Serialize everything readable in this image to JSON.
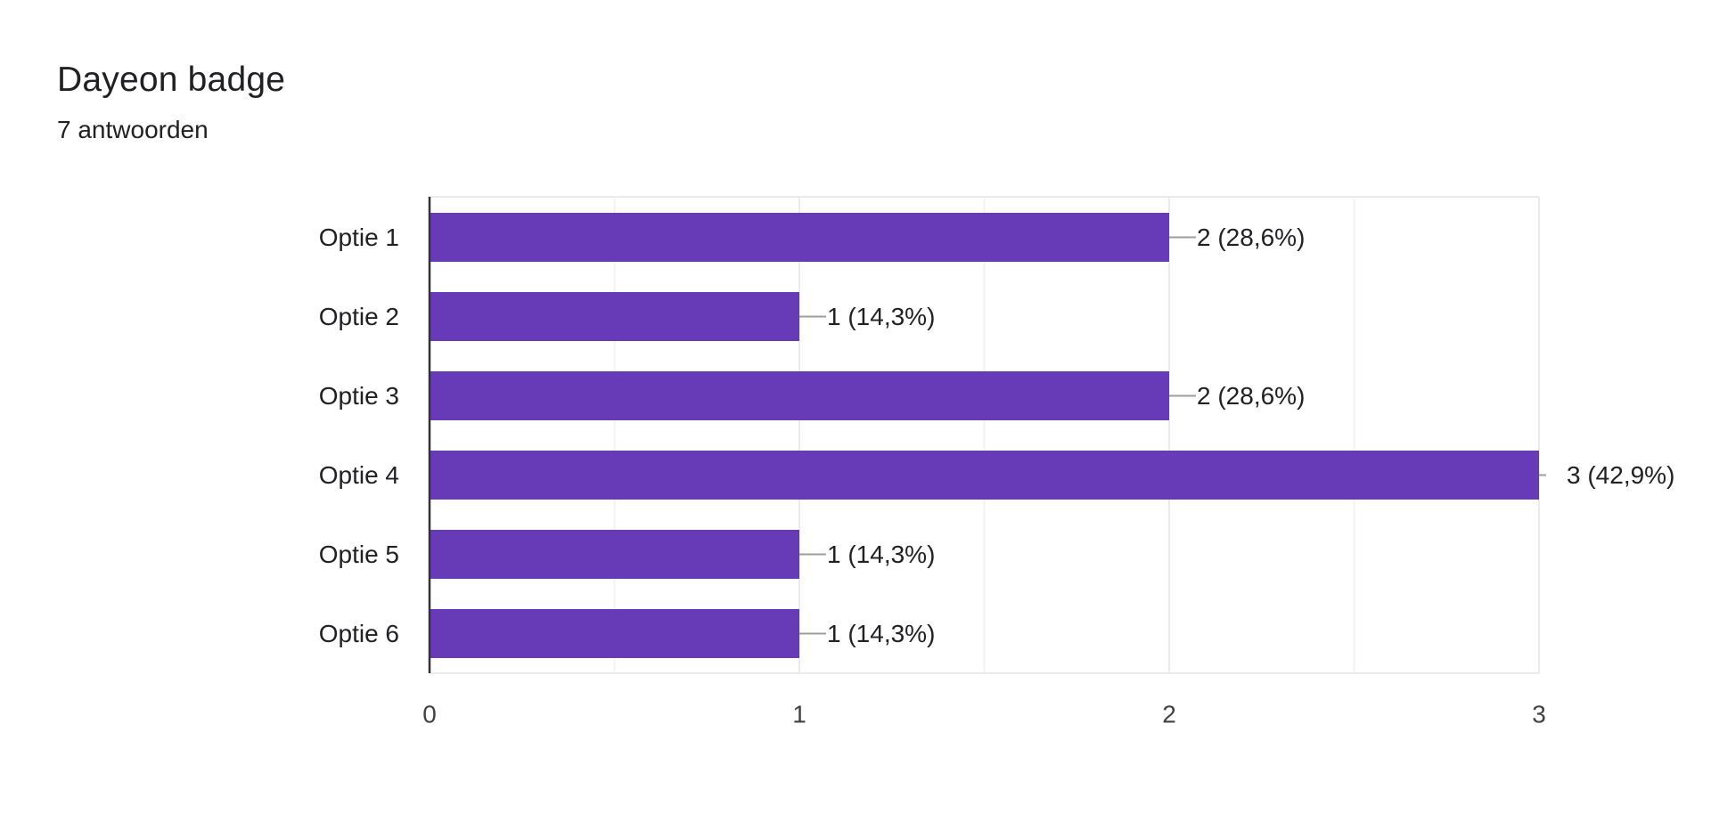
{
  "header": {
    "title": "Dayeon badge",
    "response_count": "7 antwoorden"
  },
  "colors": {
    "bar": "#673ab7",
    "grid": "#ebebeb",
    "axis": "#333333",
    "leader": "#9e9e9e",
    "text": "#202124",
    "tick_text": "#424242"
  },
  "chart_data": {
    "type": "bar",
    "orientation": "horizontal",
    "title": "Dayeon badge",
    "subtitle": "7 antwoorden",
    "categories": [
      "Optie 1",
      "Optie 2",
      "Optie 3",
      "Optie 4",
      "Optie 5",
      "Optie 6"
    ],
    "values": [
      2,
      1,
      2,
      3,
      1,
      1
    ],
    "data_labels": [
      "2 (28,6%)",
      "1 (14,3%)",
      "2 (28,6%)",
      "3 (42,9%)",
      "1 (14,3%)",
      "1 (14,3%)"
    ],
    "xlim": [
      0,
      3
    ],
    "x_ticks": [
      0,
      1,
      2,
      3
    ],
    "x_tick_labels": [
      "0",
      "1",
      "2",
      "3"
    ],
    "minor_gridlines": [
      0.5,
      1.5,
      2.5
    ],
    "grid": true,
    "legend": "none",
    "xlabel": "",
    "ylabel": ""
  }
}
